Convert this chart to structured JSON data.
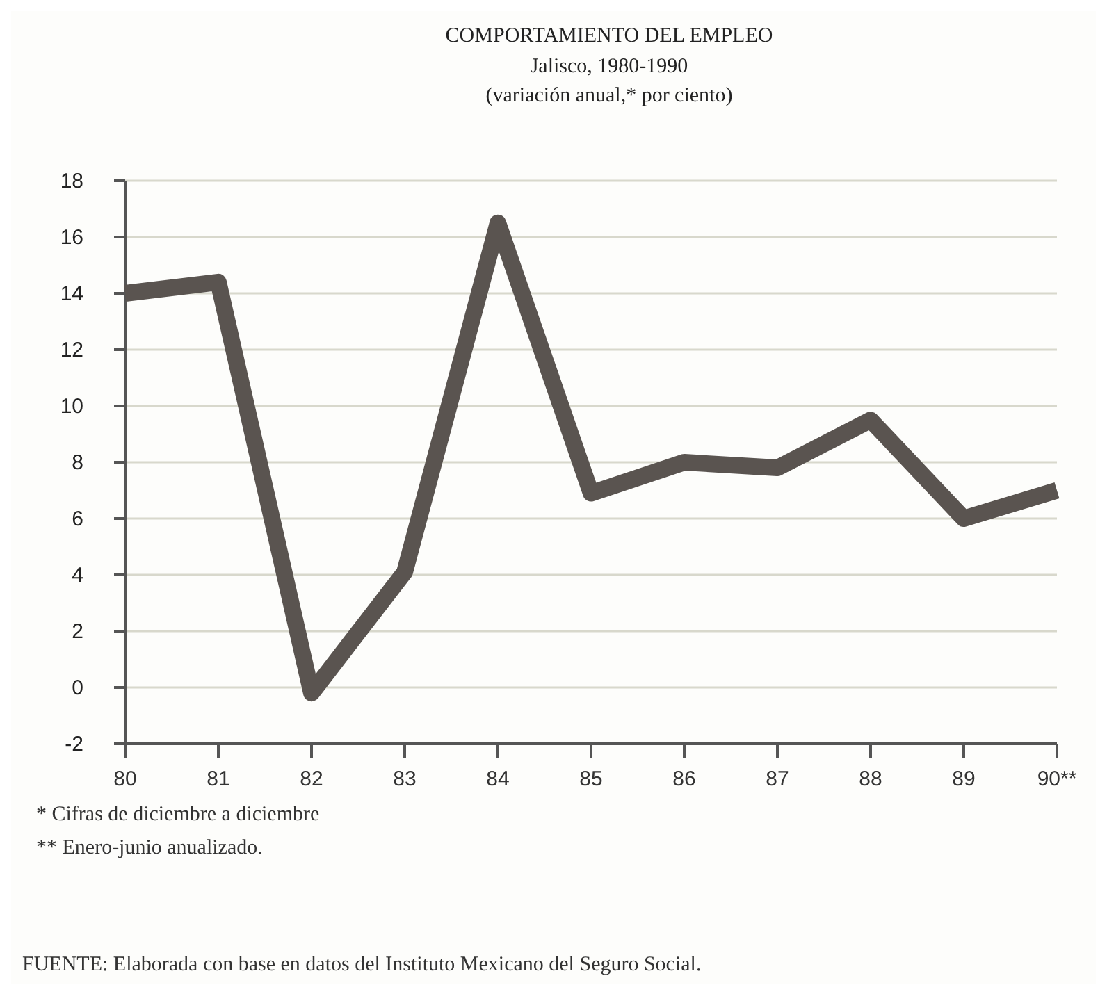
{
  "chart_data": {
    "type": "line",
    "title": "COMPORTAMIENTO DEL EMPLEO",
    "subtitle": "Jalisco, 1980-1990\n(variación anual,* por ciento)",
    "categories": [
      "80",
      "81",
      "82",
      "83",
      "84",
      "85",
      "86",
      "87",
      "88",
      "89",
      "90**"
    ],
    "series": [
      {
        "color": "#5a5450",
        "values": [
          14.0,
          14.4,
          -0.2,
          4.1,
          16.5,
          6.9,
          8.0,
          7.8,
          9.5,
          6.0,
          7.0
        ]
      }
    ],
    "ylim": [
      -2,
      18
    ],
    "yticks": [
      -2,
      0,
      2,
      4,
      6,
      8,
      10,
      12,
      14,
      16,
      18
    ],
    "grid": "y",
    "marker": "none",
    "line_style": "solid",
    "annotations": [
      "* Cifras de diciembre a diciembre",
      "** Enero-junio anualizado.",
      "FUENTE: Elaborada con base en datos del Instituto Mexicano del Seguro Social."
    ]
  }
}
